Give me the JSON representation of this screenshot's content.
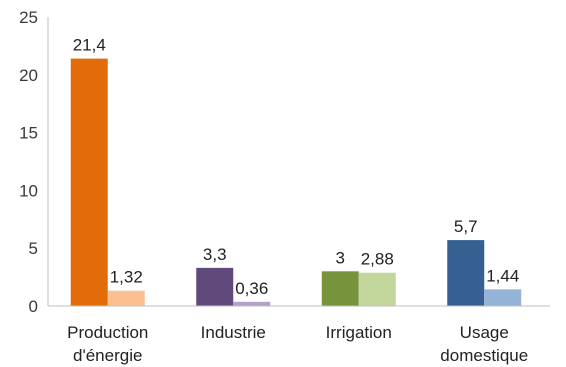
{
  "chart_data": {
    "type": "bar",
    "title": "",
    "xlabel": "",
    "ylabel": "",
    "ylim": [
      0,
      25
    ],
    "y_ticks": [
      "0",
      "5",
      "10",
      "15",
      "20",
      "25"
    ],
    "grid": false,
    "legend": "none",
    "categories": [
      {
        "lines": [
          "Production",
          "d'énergie"
        ]
      },
      {
        "lines": [
          "Industrie"
        ]
      },
      {
        "lines": [
          "Irrigation"
        ]
      },
      {
        "lines": [
          "Usage",
          "domestique"
        ]
      }
    ],
    "series": [
      {
        "values": [
          21.4,
          3.3,
          3,
          5.7
        ],
        "labels": [
          "21,4",
          "3,3",
          "3",
          "5,7"
        ]
      },
      {
        "values": [
          1.32,
          0.36,
          2.88,
          1.44
        ],
        "labels": [
          "1,32",
          "0,36",
          "2,88",
          "1,44"
        ]
      }
    ],
    "colors": [
      [
        "#e36c0a",
        "#fac090"
      ],
      [
        "#604a7b",
        "#b3a2c7"
      ],
      [
        "#77933c",
        "#c3d69b"
      ],
      [
        "#366092",
        "#95b3d7"
      ]
    ]
  }
}
